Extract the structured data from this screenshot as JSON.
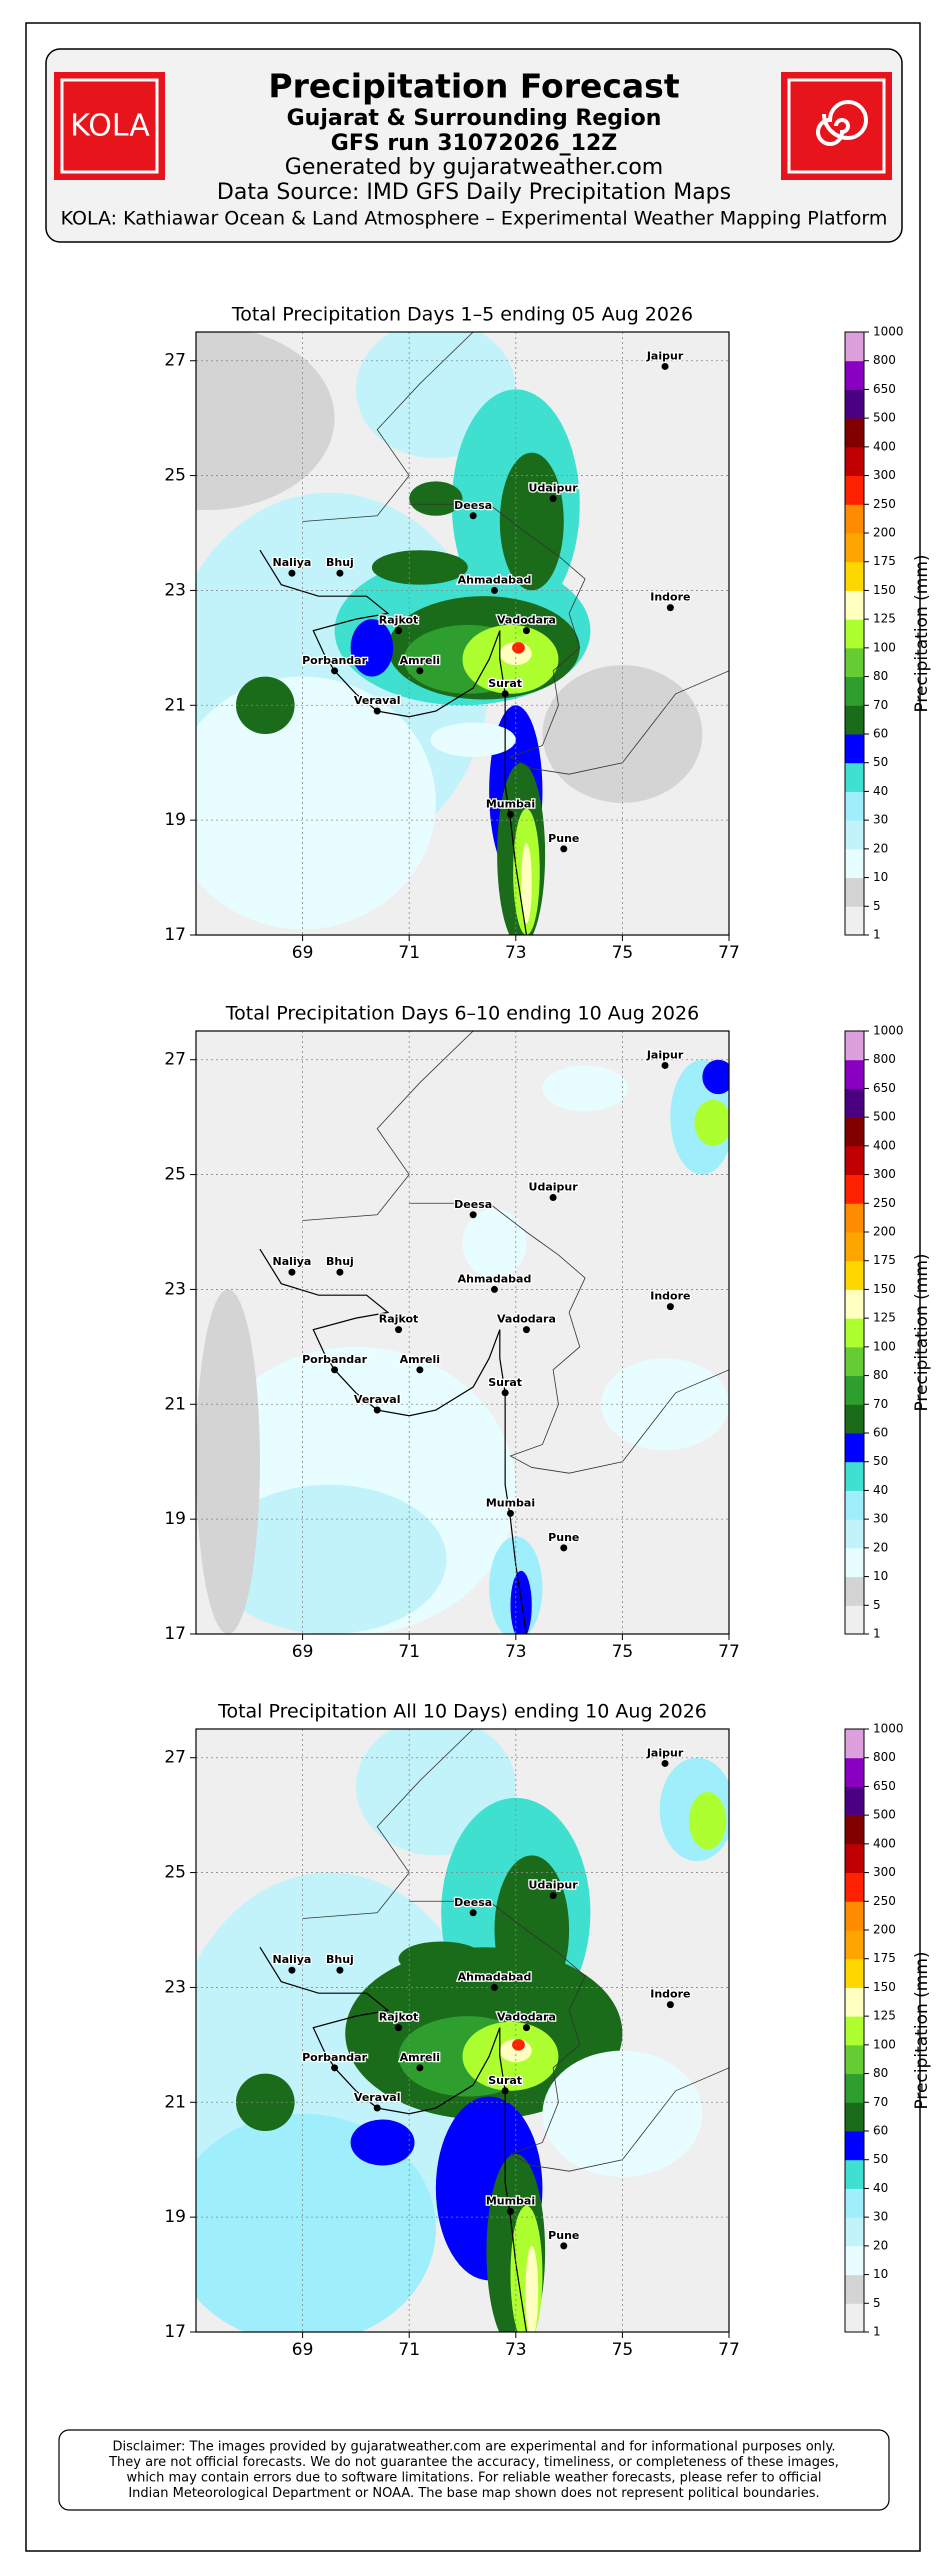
{
  "header": {
    "title": "Precipitation Forecast",
    "region": "Gujarat & Surrounding Region",
    "run": "GFS run 31072026_12Z",
    "generated": "Generated by gujaratweather.com",
    "source": "Data Source: IMD GFS Daily Precipitation Maps",
    "platform": "KOLA: Kathiawar Ocean & Land Atmosphere – Experimental Weather Mapping Platform",
    "logo_text": "KOLA"
  },
  "maps": [
    {
      "title": "Total Precipitation Days 1–5 ending 05 Aug 2026"
    },
    {
      "title": "Total Precipitation Days 6–10 ending 10 Aug 2026"
    },
    {
      "title": "Total Precipitation All 10 Days) ending 10 Aug 2026"
    }
  ],
  "xlim": [
    67,
    77
  ],
  "ylim": [
    17,
    27.5
  ],
  "xticks": [
    69,
    71,
    73,
    75,
    77
  ],
  "yticks": [
    17,
    19,
    21,
    23,
    25,
    27
  ],
  "cities": [
    "Jaipur",
    "Udaipur",
    "Deesa",
    "Naliya",
    "Bhuj",
    "Ahmadabad",
    "Indore",
    "Rajkot",
    "Vadodara",
    "Porbandar",
    "Amreli",
    "Veraval",
    "Surat",
    "Mumbai",
    "Pune"
  ],
  "colorbar": {
    "label": "Precipitation (mm)",
    "levels": [
      1,
      5,
      10,
      20,
      30,
      40,
      50,
      60,
      70,
      80,
      100,
      125,
      150,
      175,
      200,
      250,
      300,
      400,
      500,
      650,
      800,
      1000
    ],
    "colors": [
      "#efefef",
      "#d4d4d4",
      "#e8fdff",
      "#c2f3fa",
      "#9eeefc",
      "#40e0d0",
      "#0000ff",
      "#1a6b1a",
      "#2e9e2e",
      "#66cc33",
      "#adff2f",
      "#ffffc0",
      "#ffd700",
      "#ffa500",
      "#ff8c00",
      "#ff2200",
      "#c00000",
      "#800000",
      "#4b0082",
      "#8a00c0",
      "#dda0dd"
    ]
  },
  "disclaimer": [
    "Disclaimer: The images provided by gujaratweather.com are experimental and for informational purposes only.",
    "They are not official forecasts. We do not guarantee the accuracy, timeliness, or completeness of these images,",
    "which may contain errors due to software limitations. For reliable weather forecasts, please refer to official",
    "Indian Meteorological Department or NOAA. The base map shown does not represent political boundaries."
  ]
}
